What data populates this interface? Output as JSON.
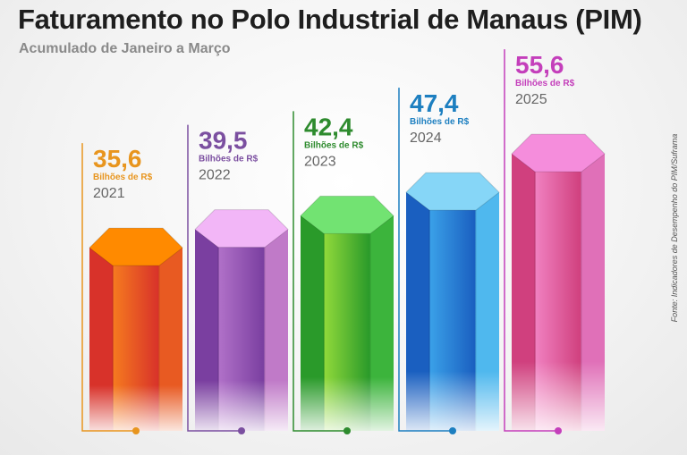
{
  "chart_data": {
    "type": "bar",
    "title": "Faturamento no Polo Industrial de Manaus (PIM)",
    "subtitle": "Acumulado de Janeiro a Março",
    "source": "Fonte: Indicadores de Desempenho do PIM/Suframa",
    "unit": "Bilhões de R$",
    "categories": [
      "2021",
      "2022",
      "2023",
      "2024",
      "2025"
    ],
    "values": [
      35.6,
      39.5,
      42.4,
      47.4,
      55.6
    ],
    "value_labels": [
      "35,6",
      "39,5",
      "42,4",
      "47,4",
      "55,6"
    ],
    "colors": [
      "#e8951e",
      "#7b4fa0",
      "#2e8b2e",
      "#1d7fc0",
      "#c43fbb"
    ],
    "top_colors": [
      "#ff8a00",
      "#f2b6f7",
      "#72e372",
      "#86d6f7",
      "#f58ddc"
    ],
    "face_colors": [
      [
        "#d8322a",
        "#f57a1f",
        "#e85a22"
      ],
      [
        "#7a3fa0",
        "#b070c8",
        "#c07ac8"
      ],
      [
        "#2a9a2a",
        "#8fd83a",
        "#3cb43c"
      ],
      [
        "#1a5fc0",
        "#3aa0e8",
        "#4fb8ee"
      ],
      [
        "#d0407e",
        "#f080c0",
        "#e070b8"
      ]
    ],
    "grid": false
  }
}
